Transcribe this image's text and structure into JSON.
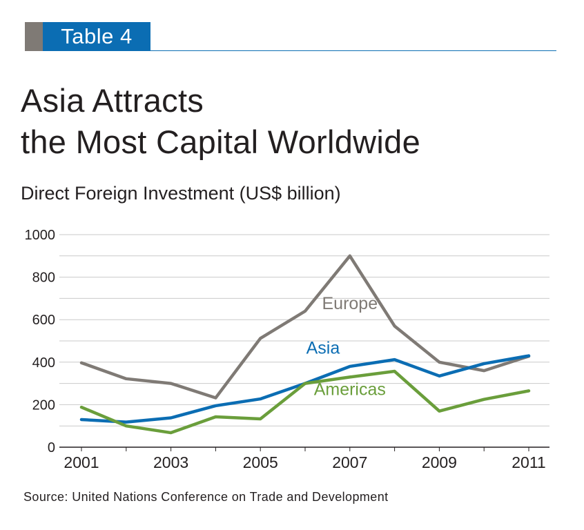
{
  "header": {
    "tag": "Table 4",
    "title_line1": "Asia Attracts",
    "title_line2": "the Most Capital Worldwide",
    "subtitle": "Direct Foreign Investment (US$ billion)"
  },
  "source": "Source: United Nations Conference on Trade and Development",
  "colors": {
    "tag_bg": "#0b6db3",
    "tag_side": "#7f7a75",
    "europe": "#7f7a75",
    "asia": "#0b6db3",
    "americas": "#6a9e3b"
  },
  "chart_data": {
    "type": "line",
    "x": [
      2001,
      2002,
      2003,
      2004,
      2005,
      2006,
      2007,
      2008,
      2009,
      2010,
      2011
    ],
    "x_tick_labels": [
      "2001",
      "2003",
      "2005",
      "2007",
      "2009",
      "2011"
    ],
    "ylim": [
      0,
      1000
    ],
    "y_tick_labels": [
      "0",
      "200",
      "400",
      "600",
      "800",
      "1000"
    ],
    "grid": true,
    "series": [
      {
        "name": "Europe",
        "color": "#7f7a75",
        "values": [
          397,
          322,
          300,
          232,
          512,
          640,
          900,
          570,
          400,
          360,
          428
        ]
      },
      {
        "name": "Asia",
        "color": "#0b6db3",
        "values": [
          130,
          118,
          138,
          195,
          227,
          300,
          380,
          412,
          335,
          393,
          430
        ]
      },
      {
        "name": "Americas",
        "color": "#6a9e3b",
        "values": [
          188,
          100,
          68,
          143,
          133,
          300,
          330,
          357,
          170,
          225,
          265
        ]
      }
    ]
  }
}
